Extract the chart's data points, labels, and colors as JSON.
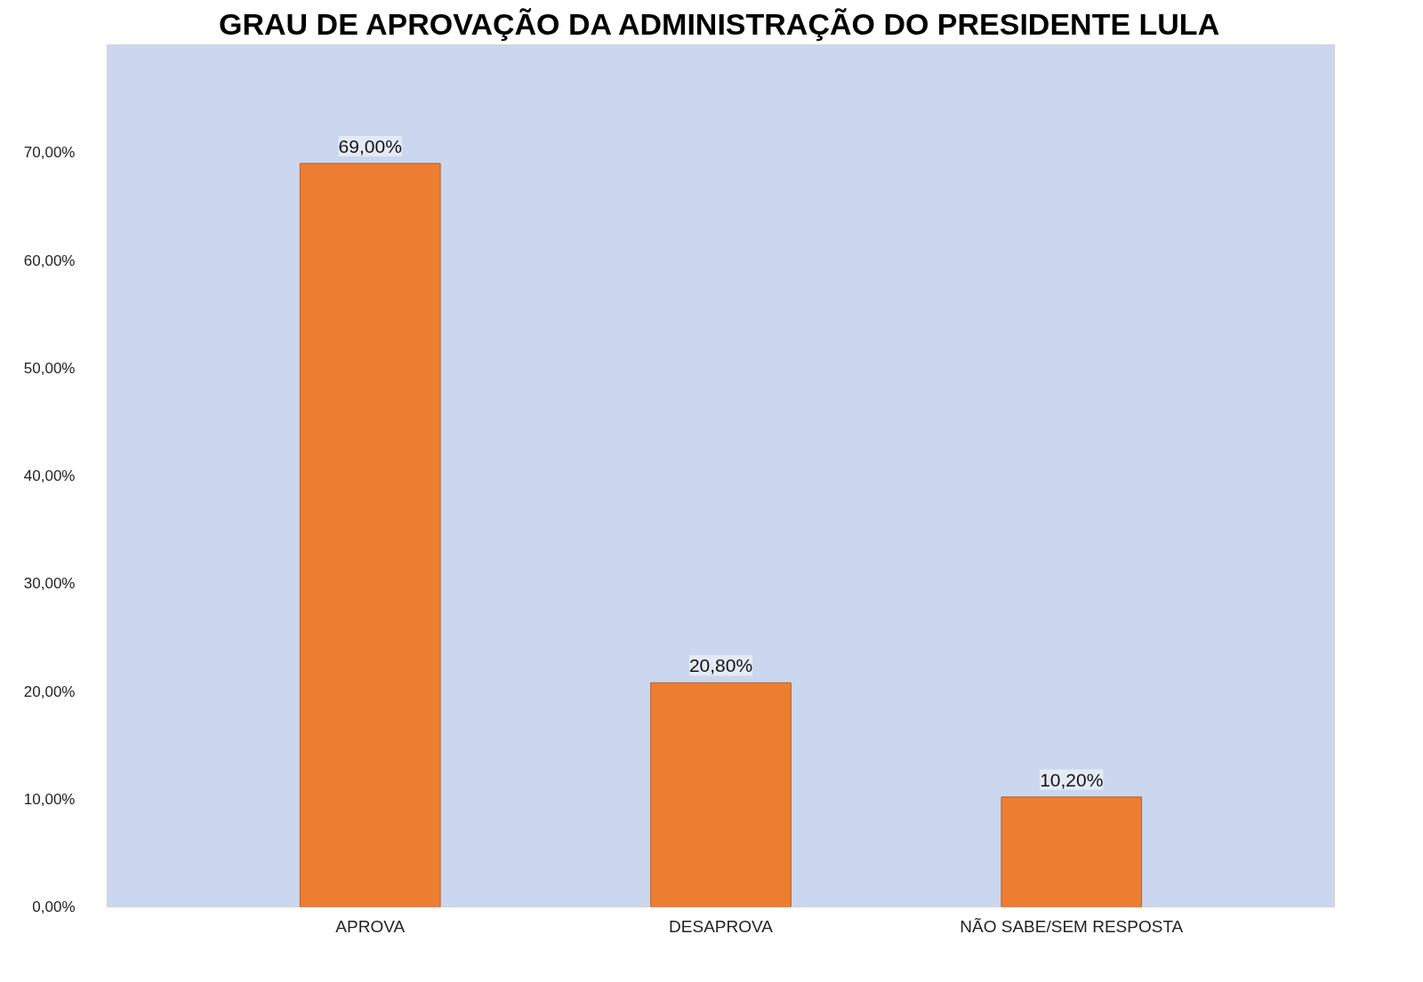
{
  "chart_data": {
    "type": "bar",
    "title": "GRAU DE APROVAÇÃO DA ADMINISTRAÇÃO DO PRESIDENTE LULA",
    "categories": [
      "APROVA",
      "DESAPROVA",
      "NÃO SABE/SEM RESPOSTA"
    ],
    "values": [
      69.0,
      20.8,
      10.2
    ],
    "color": "#ed7d31",
    "value_labels": [
      "69,00%",
      "20,80%",
      "10,20%"
    ],
    "ylim": [
      0,
      80
    ],
    "yticks": [
      {
        "value": 0,
        "label": "0,00%"
      },
      {
        "value": 10,
        "label": "10,00%"
      },
      {
        "value": 20,
        "label": "20,00%"
      },
      {
        "value": 30,
        "label": "30,00%"
      },
      {
        "value": 40,
        "label": "40,00%"
      },
      {
        "value": 50,
        "label": "50,00%"
      },
      {
        "value": 60,
        "label": "60,00%"
      },
      {
        "value": 70,
        "label": "70,00%"
      }
    ]
  }
}
